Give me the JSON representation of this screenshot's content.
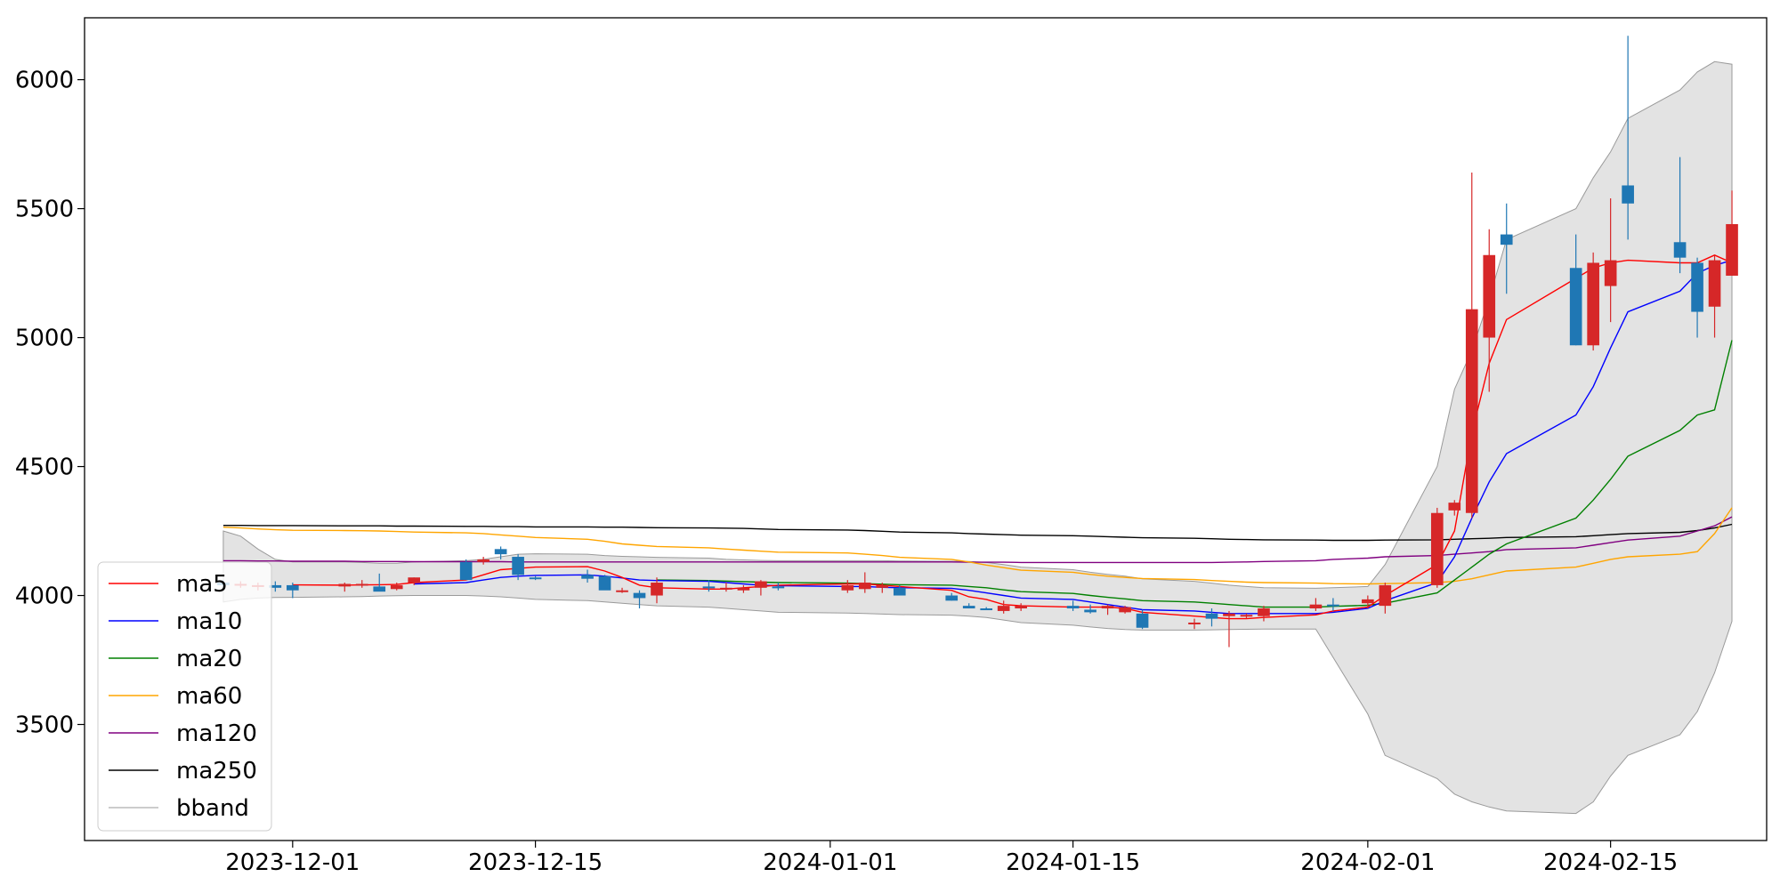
{
  "chart_data": {
    "type": "candlestick",
    "title": "",
    "xlabel": "",
    "ylabel": "",
    "ylim": [
      3050,
      6240
    ],
    "xlim": [
      "2023-11-19",
      "2024-02-24"
    ],
    "grid": false,
    "legend_position": "lower-left",
    "y_ticks": [
      3500,
      4000,
      4500,
      5000,
      5500,
      6000
    ],
    "x_ticks": [
      "2023-12-01",
      "2023-12-15",
      "2024-01-01",
      "2024-01-15",
      "2024-02-01",
      "2024-02-15"
    ],
    "colors": {
      "up": "#d62728",
      "down": "#1f77b4",
      "band_fill": "#e3e3e3",
      "band_edge": "#9a9a9a",
      "ma5": "#ff0000",
      "ma10": "#0000ff",
      "ma20": "#008000",
      "ma60": "#ffa500",
      "ma120": "#800080",
      "ma250": "#000000"
    },
    "legend": [
      "ma5",
      "ma10",
      "ma20",
      "ma60",
      "ma120",
      "ma250",
      "bband"
    ],
    "dates": [
      "2023-11-27",
      "2023-11-28",
      "2023-11-29",
      "2023-11-30",
      "2023-12-01",
      "2023-12-04",
      "2023-12-05",
      "2023-12-06",
      "2023-12-07",
      "2023-12-08",
      "2023-12-11",
      "2023-12-12",
      "2023-12-13",
      "2023-12-14",
      "2023-12-15",
      "2023-12-18",
      "2023-12-19",
      "2023-12-20",
      "2023-12-21",
      "2023-12-22",
      "2023-12-25",
      "2023-12-26",
      "2023-12-27",
      "2023-12-28",
      "2023-12-29",
      "2024-01-02",
      "2024-01-03",
      "2024-01-04",
      "2024-01-05",
      "2024-01-08",
      "2024-01-09",
      "2024-01-10",
      "2024-01-11",
      "2024-01-12",
      "2024-01-15",
      "2024-01-16",
      "2024-01-17",
      "2024-01-18",
      "2024-01-19",
      "2024-01-22",
      "2024-01-23",
      "2024-01-24",
      "2024-01-25",
      "2024-01-26",
      "2024-01-29",
      "2024-01-30",
      "2024-02-01",
      "2024-02-02",
      "2024-02-05",
      "2024-02-06",
      "2024-02-07",
      "2024-02-08",
      "2024-02-09",
      "2024-02-13",
      "2024-02-14",
      "2024-02-15",
      "2024-02-16",
      "2024-02-19",
      "2024-02-20",
      "2024-02-21",
      "2024-02-22"
    ],
    "ohlc": [
      [
        4050,
        4060,
        4030,
        4040
      ],
      [
        4040,
        4055,
        4030,
        4045
      ],
      [
        4035,
        4050,
        4020,
        4040
      ],
      [
        4040,
        4055,
        4015,
        4030
      ],
      [
        4040,
        4050,
        3990,
        4020
      ],
      [
        4035,
        4050,
        4015,
        4045
      ],
      [
        4040,
        4060,
        4030,
        4045
      ],
      [
        4035,
        4085,
        4020,
        4015
      ],
      [
        4025,
        4050,
        4020,
        4040
      ],
      [
        4050,
        4070,
        4040,
        4070
      ],
      [
        4130,
        4140,
        4080,
        4060
      ],
      [
        4130,
        4150,
        4120,
        4140
      ],
      [
        4180,
        4190,
        4140,
        4160
      ],
      [
        4150,
        4160,
        4060,
        4080
      ],
      [
        4070,
        4075,
        4060,
        4065
      ],
      [
        4080,
        4100,
        4050,
        4065
      ],
      [
        4075,
        4080,
        4040,
        4020
      ],
      [
        4015,
        4030,
        4010,
        4020
      ],
      [
        4010,
        4020,
        3950,
        3990
      ],
      [
        4000,
        4070,
        3970,
        4050
      ],
      [
        4035,
        4060,
        4015,
        4030
      ],
      [
        4025,
        4050,
        4015,
        4030
      ],
      [
        4020,
        4040,
        4010,
        4030
      ],
      [
        4030,
        4060,
        4000,
        4055
      ],
      [
        4035,
        4050,
        4020,
        4030
      ],
      [
        4020,
        4060,
        4010,
        4040
      ],
      [
        4025,
        4090,
        4010,
        4050
      ],
      [
        4030,
        4050,
        4010,
        4040
      ],
      [
        4030,
        4040,
        4010,
        4000
      ],
      [
        4000,
        4010,
        3980,
        3980
      ],
      [
        3960,
        3970,
        3950,
        3950
      ],
      [
        3950,
        3955,
        3945,
        3948
      ],
      [
        3940,
        3980,
        3930,
        3960
      ],
      [
        3950,
        3970,
        3940,
        3960
      ],
      [
        3960,
        3980,
        3940,
        3950
      ],
      [
        3945,
        3965,
        3930,
        3935
      ],
      [
        3950,
        3965,
        3925,
        3960
      ],
      [
        3935,
        3960,
        3930,
        3955
      ],
      [
        3930,
        3945,
        3870,
        3875
      ],
      [
        3890,
        3910,
        3870,
        3895
      ],
      [
        3930,
        3950,
        3880,
        3910
      ],
      [
        3920,
        3940,
        3800,
        3930
      ],
      [
        3920,
        3930,
        3910,
        3925
      ],
      [
        3920,
        3960,
        3900,
        3950
      ],
      [
        3950,
        3990,
        3940,
        3965
      ],
      [
        3965,
        3990,
        3940,
        3960
      ],
      [
        3970,
        4000,
        3950,
        3985
      ],
      [
        3960,
        4050,
        3930,
        4040
      ],
      [
        4040,
        4340,
        4030,
        4320
      ],
      [
        4330,
        4370,
        4310,
        4360
      ],
      [
        4320,
        5640,
        4300,
        5110
      ],
      [
        5000,
        5420,
        4790,
        5320
      ],
      [
        5400,
        5520,
        5170,
        5360
      ],
      [
        5270,
        5400,
        4970,
        4970
      ],
      [
        4970,
        5330,
        4950,
        5290
      ],
      [
        5200,
        5540,
        5060,
        5300
      ],
      [
        5590,
        6170,
        5380,
        5520
      ],
      [
        5370,
        5700,
        5250,
        5310
      ],
      [
        5290,
        5310,
        5000,
        5100
      ],
      [
        5120,
        5320,
        5000,
        5300
      ],
      [
        5240,
        5570,
        5240,
        5440
      ]
    ],
    "series": [
      {
        "name": "ma5",
        "values": [
          null,
          null,
          null,
          null,
          4041,
          4040,
          4041,
          4042,
          4043,
          4050,
          4060,
          4080,
          4100,
          4105,
          4110,
          4112,
          4095,
          4070,
          4040,
          4030,
          4025,
          4025,
          4030,
          4035,
          4040,
          4045,
          4045,
          4040,
          4035,
          4020,
          3995,
          3985,
          3965,
          3960,
          3955,
          3955,
          3955,
          3950,
          3935,
          3920,
          3915,
          3910,
          3910,
          3915,
          3925,
          3940,
          3955,
          4000,
          4120,
          4250,
          4630,
          4900,
          5070,
          5230,
          5270,
          5290,
          5300,
          5290,
          5290,
          5320,
          5290
        ]
      },
      {
        "name": "ma10",
        "values": [
          null,
          null,
          null,
          null,
          null,
          null,
          null,
          null,
          null,
          4045,
          4050,
          4060,
          4070,
          4075,
          4078,
          4080,
          4075,
          4068,
          4060,
          4058,
          4055,
          4050,
          4045,
          4040,
          4038,
          4035,
          4035,
          4032,
          4030,
          4028,
          4020,
          4010,
          4000,
          3990,
          3985,
          3975,
          3965,
          3955,
          3945,
          3940,
          3935,
          3930,
          3930,
          3930,
          3930,
          3935,
          3950,
          3980,
          4050,
          4150,
          4300,
          4440,
          4550,
          4700,
          4810,
          4960,
          5100,
          5180,
          5250,
          5280,
          5300
        ]
      },
      {
        "name": "ma20",
        "values": [
          null,
          null,
          null,
          null,
          null,
          null,
          null,
          null,
          null,
          null,
          null,
          null,
          null,
          null,
          null,
          null,
          null,
          null,
          null,
          4060,
          4058,
          4056,
          4054,
          4052,
          4050,
          4048,
          4046,
          4044,
          4042,
          4040,
          4035,
          4030,
          4022,
          4015,
          4008,
          4000,
          3993,
          3987,
          3980,
          3975,
          3970,
          3965,
          3960,
          3955,
          3955,
          3958,
          3962,
          3970,
          4010,
          4060,
          4110,
          4160,
          4200,
          4300,
          4370,
          4450,
          4540,
          4640,
          4700,
          4720,
          4990
        ]
      },
      {
        "name": "ma60",
        "values": [
          4265,
          4262,
          4258,
          4255,
          4253,
          4252,
          4251,
          4250,
          4248,
          4246,
          4243,
          4240,
          4235,
          4230,
          4225,
          4218,
          4210,
          4200,
          4195,
          4190,
          4185,
          4180,
          4176,
          4172,
          4168,
          4165,
          4160,
          4155,
          4148,
          4140,
          4130,
          4118,
          4108,
          4098,
          4090,
          4082,
          4075,
          4070,
          4066,
          4062,
          4058,
          4055,
          4052,
          4050,
          4048,
          4046,
          4045,
          4046,
          4050,
          4055,
          4065,
          4080,
          4095,
          4110,
          4125,
          4140,
          4150,
          4160,
          4170,
          4240,
          4340
        ]
      },
      {
        "name": "ma120",
        "values": [
          4135,
          4135,
          4134,
          4134,
          4133,
          4133,
          4132,
          4132,
          4132,
          4131,
          4131,
          4131,
          4131,
          4130,
          4130,
          4130,
          4130,
          4130,
          4130,
          4130,
          4130,
          4130,
          4130,
          4130,
          4130,
          4130,
          4130,
          4130,
          4130,
          4130,
          4129,
          4129,
          4129,
          4128,
          4128,
          4128,
          4128,
          4128,
          4128,
          4128,
          4128,
          4129,
          4130,
          4132,
          4135,
          4140,
          4145,
          4150,
          4155,
          4160,
          4165,
          4170,
          4178,
          4185,
          4195,
          4205,
          4215,
          4230,
          4250,
          4270,
          4305
        ]
      },
      {
        "name": "ma250",
        "values": [
          4272,
          4272,
          4271,
          4271,
          4271,
          4270,
          4270,
          4270,
          4269,
          4269,
          4268,
          4268,
          4267,
          4267,
          4266,
          4266,
          4265,
          4265,
          4264,
          4263,
          4262,
          4261,
          4260,
          4258,
          4256,
          4254,
          4252,
          4249,
          4246,
          4243,
          4240,
          4238,
          4236,
          4234,
          4232,
          4230,
          4228,
          4226,
          4224,
          4222,
          4220,
          4218,
          4217,
          4216,
          4215,
          4214,
          4214,
          4215,
          4216,
          4218,
          4220,
          4222,
          4225,
          4228,
          4232,
          4236,
          4240,
          4245,
          4252,
          4262,
          4276
        ]
      }
    ],
    "bband": {
      "name": "bband",
      "upper": [
        4250,
        4230,
        4180,
        4140,
        4130,
        4130,
        4128,
        4125,
        4125,
        4130,
        4135,
        4140,
        4150,
        4160,
        4162,
        4160,
        4155,
        4152,
        4150,
        4148,
        4145,
        4140,
        4138,
        4136,
        4135,
        4135,
        4135,
        4135,
        4134,
        4133,
        4132,
        4128,
        4120,
        4110,
        4100,
        4090,
        4082,
        4075,
        4065,
        4055,
        4048,
        4040,
        4035,
        4030,
        4028,
        4030,
        4035,
        4120,
        4500,
        4800,
        4950,
        5150,
        5380,
        5500,
        5620,
        5720,
        5850,
        5960,
        6030,
        6070,
        6060
      ],
      "lower": [
        3975,
        3985,
        3990,
        3992,
        3993,
        3995,
        3996,
        3998,
        3999,
        4000,
        4000,
        3998,
        3995,
        3990,
        3985,
        3980,
        3975,
        3970,
        3965,
        3960,
        3955,
        3950,
        3945,
        3940,
        3935,
        3932,
        3930,
        3928,
        3926,
        3924,
        3920,
        3915,
        3905,
        3895,
        3885,
        3878,
        3872,
        3868,
        3866,
        3866,
        3867,
        3868,
        3869,
        3870,
        3870,
        3760,
        3540,
        3380,
        3290,
        3230,
        3200,
        3180,
        3165,
        3155,
        3200,
        3300,
        3380,
        3460,
        3550,
        3700,
        3900
      ]
    }
  }
}
